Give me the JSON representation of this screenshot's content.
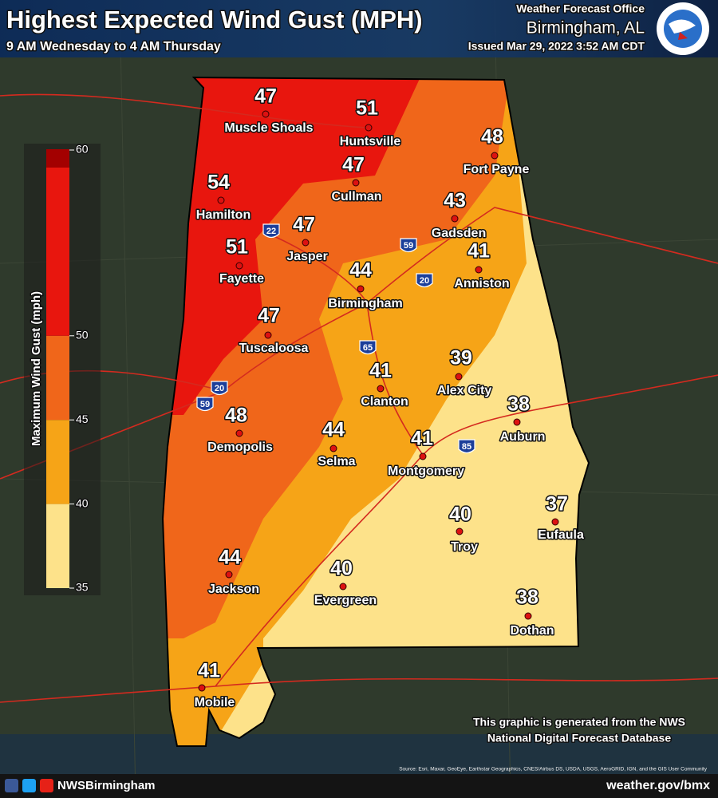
{
  "header": {
    "title": "Highest Expected Wind Gust (MPH)",
    "subtitle": "9 AM Wednesday to 4 AM Thursday",
    "office": "Weather Forecast Office",
    "location": "Birmingham, AL",
    "issued": "Issued Mar 29, 2022 3:52 AM CDT"
  },
  "legend": {
    "title": "Maximum Wind Gust (mph)",
    "ticks": [
      35,
      40,
      45,
      50,
      60
    ],
    "bands": [
      {
        "from": 35,
        "to": 40,
        "color": "#fde28a"
      },
      {
        "from": 40,
        "to": 45,
        "color": "#f6a417"
      },
      {
        "from": 45,
        "to": 50,
        "color": "#f0661a"
      },
      {
        "from": 50,
        "to": 60,
        "color": "#e8160e"
      }
    ]
  },
  "cities": [
    {
      "name": "Muscle Shoals",
      "value": 47
    },
    {
      "name": "Huntsville",
      "value": 51
    },
    {
      "name": "Fort Payne",
      "value": 48
    },
    {
      "name": "Hamilton",
      "value": 54
    },
    {
      "name": "Cullman",
      "value": 47
    },
    {
      "name": "Gadsden",
      "value": 43
    },
    {
      "name": "Jasper",
      "value": 47
    },
    {
      "name": "Fayette",
      "value": 51
    },
    {
      "name": "Anniston",
      "value": 41
    },
    {
      "name": "Birmingham",
      "value": 44
    },
    {
      "name": "Tuscaloosa",
      "value": 47
    },
    {
      "name": "Alex City",
      "value": 39
    },
    {
      "name": "Clanton",
      "value": 41
    },
    {
      "name": "Auburn",
      "value": 38
    },
    {
      "name": "Demopolis",
      "value": 48
    },
    {
      "name": "Selma",
      "value": 44
    },
    {
      "name": "Montgomery",
      "value": 41
    },
    {
      "name": "Troy",
      "value": 40
    },
    {
      "name": "Eufaula",
      "value": 37
    },
    {
      "name": "Jackson",
      "value": 44
    },
    {
      "name": "Evergreen",
      "value": 40
    },
    {
      "name": "Dothan",
      "value": 38
    },
    {
      "name": "Mobile",
      "value": 41
    }
  ],
  "highways": [
    "22",
    "59",
    "20",
    "65",
    "85",
    "20",
    "59"
  ],
  "note": [
    "This graphic is generated from the NWS",
    "National Digital Forecast Database"
  ],
  "source": "Source: Esri, Maxar, GeoEye, Earthstar Geographics, CNES/Airbus DS, USDA, USGS, AeroGRID, IGN, and the GIS User Community",
  "footer": {
    "social": "NWSBirmingham",
    "url": "weather.gov/bmx"
  }
}
